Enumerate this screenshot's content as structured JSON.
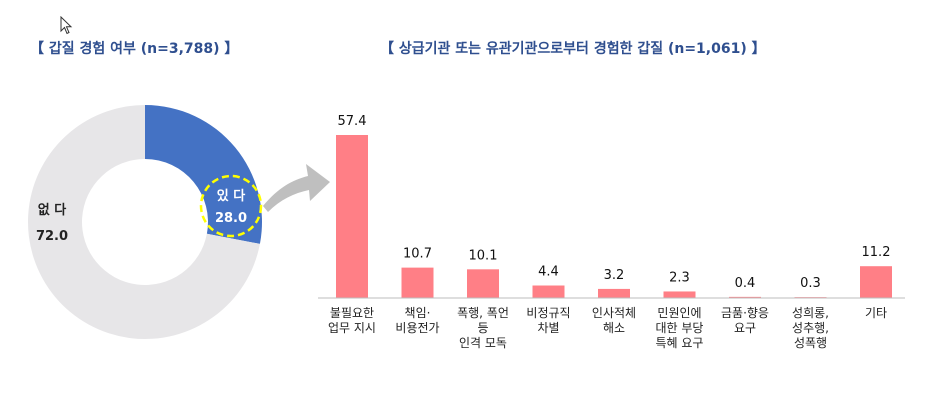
{
  "left_title": "【 갑질 경험 여부 (n=3,788) 】",
  "right_title": "【 상급기관 또는 유관기관으로부터 경험한 갑질 (n=1,061) 】",
  "chart_data": [
    {
      "type": "pie",
      "title": "【 갑질 경험 여부 (n=3,788) 】",
      "slices": [
        {
          "label": "있 다",
          "value": 28.0,
          "value_label": "28.0",
          "color": "#4472c4"
        },
        {
          "label": "없 다",
          "value": 72.0,
          "value_label": "72.0",
          "color": "#e7e6e8"
        }
      ]
    },
    {
      "type": "bar",
      "title": "【 상급기관 또는 유관기관으로부터 경험한 갑질 (n=1,061) 】",
      "categories": [
        [
          "불필요한",
          "업무 지시"
        ],
        [
          "책임·",
          "비용전가"
        ],
        [
          "폭행, 폭언",
          "등",
          "인격 모독"
        ],
        [
          "비정규직",
          "차별"
        ],
        [
          "인사적체",
          "해소"
        ],
        [
          "민원인에",
          "대한 부당",
          "특혜 요구"
        ],
        [
          "금품·향응",
          "요구"
        ],
        [
          "성희롱,",
          "성추행,",
          "성폭행"
        ],
        [
          "기타"
        ]
      ],
      "values": [
        57.4,
        10.7,
        10.1,
        4.4,
        3.2,
        2.3,
        0.4,
        0.3,
        11.2
      ],
      "value_labels": [
        "57.4",
        "10.7",
        "10.1",
        "4.4",
        "3.2",
        "2.3",
        "0.4",
        "0.3",
        "11.2"
      ],
      "ylim": [
        0,
        57.4
      ],
      "bar_color": "#ff7f86",
      "xlabel": "",
      "ylabel": ""
    }
  ]
}
